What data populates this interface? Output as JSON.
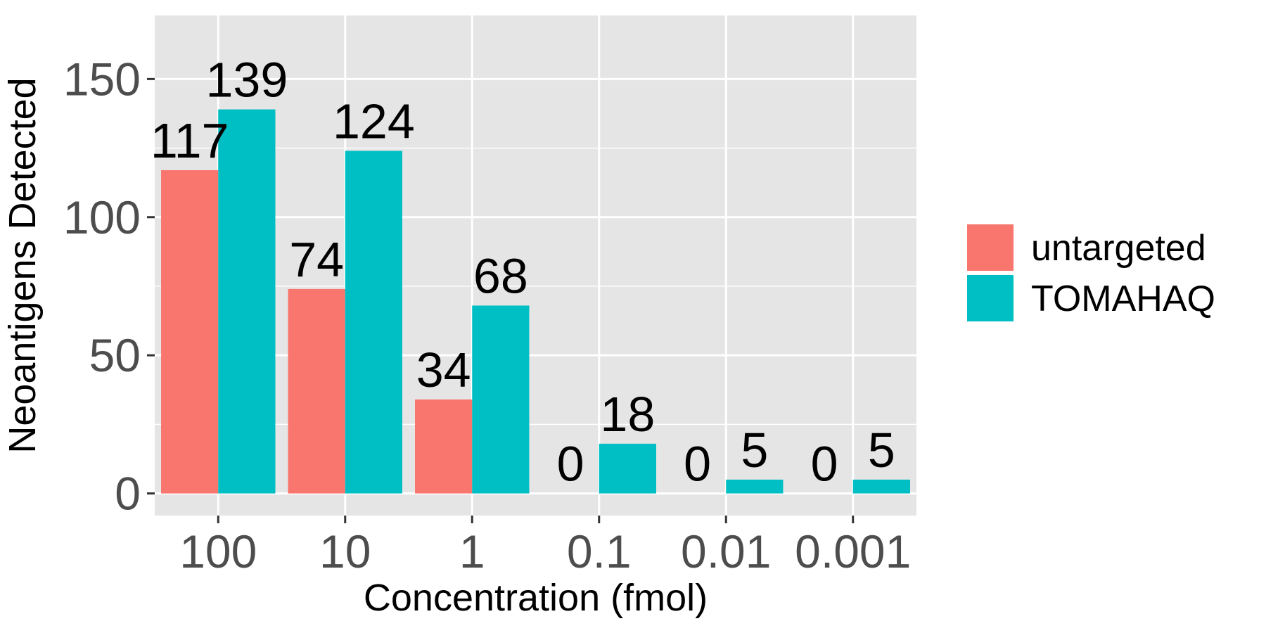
{
  "chart_data": {
    "type": "bar",
    "title": "",
    "xlabel": "Concentration (fmol)",
    "ylabel": "Neoantigens Detected",
    "categories": [
      "100",
      "10",
      "1",
      "0.1",
      "0.01",
      "0.001"
    ],
    "series": [
      {
        "name": "untargeted",
        "color": "#F8766D",
        "values": [
          117,
          74,
          34,
          0,
          0,
          0
        ]
      },
      {
        "name": "TOMAHAQ",
        "color": "#00BFC4",
        "values": [
          139,
          124,
          68,
          18,
          5,
          5
        ]
      }
    ],
    "ylim": [
      -8,
      173
    ],
    "yticks": [
      0,
      50,
      100,
      150
    ],
    "grid": true,
    "data_labels": true,
    "legend_position": "right",
    "panel_background": "#E5E5E5"
  }
}
